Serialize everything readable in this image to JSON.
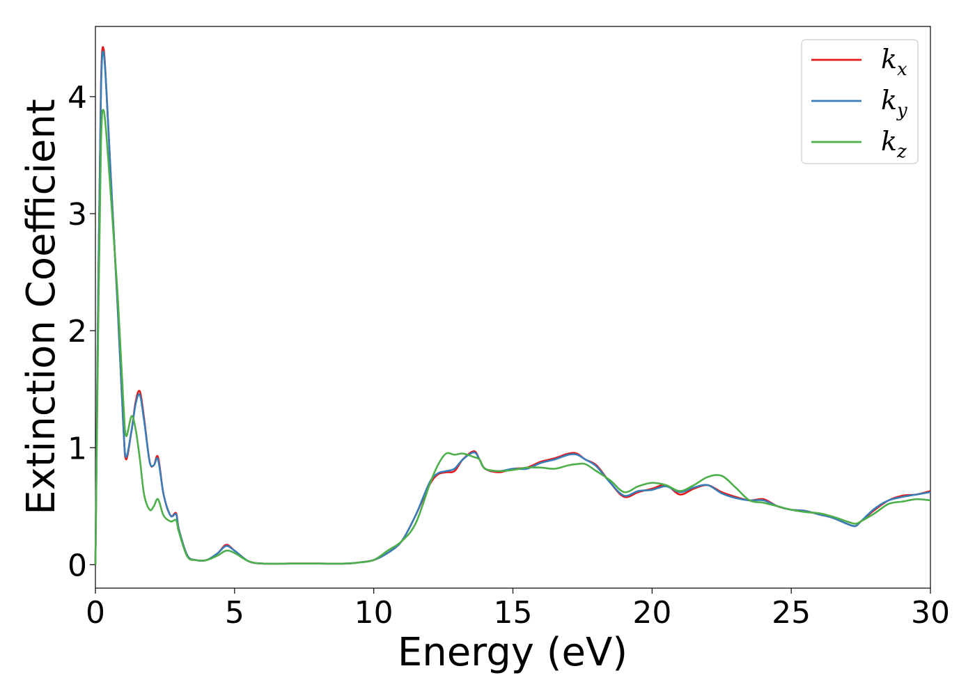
{
  "chart_data": {
    "type": "line",
    "title": "",
    "xlabel": "Energy (eV)",
    "ylabel": "Extinction Coefficient",
    "xlim": [
      0,
      30
    ],
    "ylim": [
      -0.2,
      4.6
    ],
    "xticks": [
      0,
      5,
      10,
      15,
      20,
      25,
      30
    ],
    "yticks": [
      0,
      1,
      2,
      3,
      4
    ],
    "grid": false,
    "legend_position": "top-right",
    "series": [
      {
        "name": "k",
        "sub": "x",
        "color": "#e41a1c",
        "x": [
          0,
          0.1,
          0.2,
          0.3,
          0.45,
          0.6,
          0.8,
          1.0,
          1.1,
          1.3,
          1.45,
          1.6,
          1.75,
          1.95,
          2.1,
          2.25,
          2.45,
          2.7,
          2.9,
          3.0,
          3.3,
          3.6,
          4.0,
          4.4,
          4.7,
          5.0,
          5.5,
          6.0,
          7.0,
          8.0,
          9.0,
          9.5,
          10.0,
          10.5,
          11.0,
          11.5,
          12.0,
          12.3,
          12.6,
          12.9,
          13.2,
          13.6,
          13.8,
          14.0,
          14.5,
          15.0,
          15.5,
          16.0,
          16.5,
          17.0,
          17.3,
          17.6,
          18.0,
          18.5,
          19.0,
          19.5,
          20.0,
          20.5,
          21.0,
          21.5,
          22.0,
          22.5,
          23.0,
          23.5,
          24.0,
          24.5,
          25.0,
          25.5,
          26.0,
          26.5,
          27.0,
          27.3,
          27.5,
          28.0,
          28.5,
          29.0,
          29.5,
          30.0
        ],
        "y": [
          0.0,
          2.3,
          4.1,
          4.4,
          3.8,
          3.1,
          2.2,
          1.2,
          0.9,
          1.15,
          1.4,
          1.48,
          1.25,
          0.88,
          0.85,
          0.92,
          0.6,
          0.42,
          0.44,
          0.3,
          0.08,
          0.04,
          0.04,
          0.1,
          0.17,
          0.12,
          0.03,
          0.01,
          0.01,
          0.01,
          0.01,
          0.02,
          0.04,
          0.1,
          0.2,
          0.42,
          0.68,
          0.77,
          0.79,
          0.8,
          0.9,
          0.97,
          0.9,
          0.82,
          0.79,
          0.82,
          0.83,
          0.88,
          0.91,
          0.95,
          0.95,
          0.9,
          0.85,
          0.7,
          0.58,
          0.62,
          0.65,
          0.68,
          0.6,
          0.65,
          0.68,
          0.62,
          0.58,
          0.55,
          0.56,
          0.5,
          0.47,
          0.46,
          0.43,
          0.4,
          0.35,
          0.33,
          0.37,
          0.47,
          0.55,
          0.59,
          0.6,
          0.63
        ]
      },
      {
        "name": "k",
        "sub": "y",
        "color": "#377eb8",
        "x": [
          0,
          0.1,
          0.2,
          0.3,
          0.45,
          0.6,
          0.8,
          1.0,
          1.1,
          1.3,
          1.45,
          1.6,
          1.75,
          1.95,
          2.1,
          2.25,
          2.45,
          2.7,
          2.9,
          3.0,
          3.3,
          3.6,
          4.0,
          4.4,
          4.7,
          5.0,
          5.5,
          6.0,
          7.0,
          8.0,
          9.0,
          9.5,
          10.0,
          10.5,
          11.0,
          11.5,
          12.0,
          12.3,
          12.6,
          12.9,
          13.2,
          13.6,
          13.8,
          14.0,
          14.5,
          15.0,
          15.5,
          16.0,
          16.5,
          17.0,
          17.3,
          17.6,
          18.0,
          18.5,
          19.0,
          19.5,
          20.0,
          20.5,
          21.0,
          21.5,
          22.0,
          22.5,
          23.0,
          23.5,
          24.0,
          24.5,
          25.0,
          25.5,
          26.0,
          26.5,
          27.0,
          27.3,
          27.5,
          28.0,
          28.5,
          29.0,
          29.5,
          30.0
        ],
        "y": [
          0.0,
          2.3,
          4.05,
          4.37,
          3.8,
          3.1,
          2.2,
          1.2,
          0.92,
          1.15,
          1.38,
          1.45,
          1.23,
          0.88,
          0.85,
          0.9,
          0.6,
          0.42,
          0.43,
          0.3,
          0.08,
          0.04,
          0.04,
          0.1,
          0.16,
          0.12,
          0.03,
          0.01,
          0.01,
          0.01,
          0.01,
          0.02,
          0.04,
          0.1,
          0.2,
          0.42,
          0.7,
          0.78,
          0.8,
          0.82,
          0.9,
          0.96,
          0.9,
          0.82,
          0.8,
          0.82,
          0.82,
          0.87,
          0.9,
          0.94,
          0.94,
          0.9,
          0.84,
          0.7,
          0.59,
          0.63,
          0.64,
          0.67,
          0.62,
          0.66,
          0.68,
          0.61,
          0.57,
          0.55,
          0.55,
          0.5,
          0.47,
          0.46,
          0.43,
          0.4,
          0.35,
          0.33,
          0.37,
          0.48,
          0.55,
          0.58,
          0.6,
          0.62
        ]
      },
      {
        "name": "k",
        "sub": "z",
        "color": "#4daf4a",
        "x": [
          0,
          0.1,
          0.2,
          0.3,
          0.45,
          0.6,
          0.8,
          1.0,
          1.1,
          1.3,
          1.45,
          1.6,
          1.75,
          1.95,
          2.1,
          2.25,
          2.45,
          2.7,
          2.9,
          3.0,
          3.3,
          3.6,
          4.0,
          4.4,
          4.7,
          5.0,
          5.5,
          6.0,
          7.0,
          8.0,
          9.0,
          9.5,
          10.0,
          10.5,
          11.0,
          11.5,
          12.0,
          12.3,
          12.6,
          12.9,
          13.2,
          13.6,
          13.8,
          14.0,
          14.5,
          15.0,
          15.5,
          16.0,
          16.5,
          17.0,
          17.3,
          17.6,
          18.0,
          18.5,
          19.0,
          19.5,
          20.0,
          20.5,
          21.0,
          21.5,
          22.0,
          22.5,
          23.0,
          23.5,
          24.0,
          24.5,
          25.0,
          25.5,
          26.0,
          26.5,
          27.0,
          27.3,
          27.5,
          28.0,
          28.5,
          29.0,
          29.5,
          30.0
        ],
        "y": [
          0.0,
          2.0,
          3.6,
          3.88,
          3.5,
          3.0,
          2.3,
          1.4,
          1.1,
          1.27,
          1.15,
          0.9,
          0.6,
          0.47,
          0.5,
          0.56,
          0.42,
          0.37,
          0.38,
          0.28,
          0.07,
          0.04,
          0.04,
          0.08,
          0.12,
          0.1,
          0.03,
          0.01,
          0.01,
          0.01,
          0.01,
          0.02,
          0.04,
          0.12,
          0.2,
          0.35,
          0.68,
          0.85,
          0.95,
          0.94,
          0.95,
          0.92,
          0.9,
          0.82,
          0.8,
          0.81,
          0.83,
          0.83,
          0.82,
          0.85,
          0.86,
          0.86,
          0.8,
          0.72,
          0.62,
          0.67,
          0.7,
          0.68,
          0.63,
          0.68,
          0.75,
          0.76,
          0.66,
          0.55,
          0.53,
          0.5,
          0.47,
          0.45,
          0.44,
          0.41,
          0.37,
          0.35,
          0.37,
          0.44,
          0.52,
          0.54,
          0.56,
          0.55
        ]
      }
    ]
  }
}
